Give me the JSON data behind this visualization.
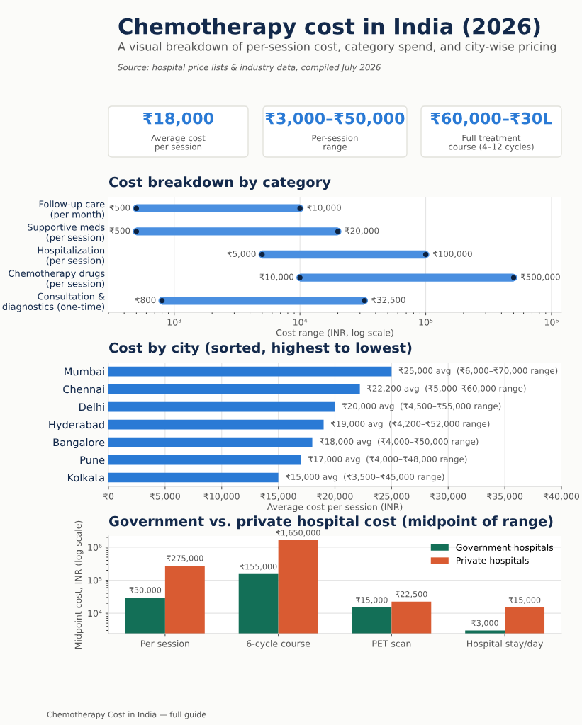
{
  "chart_data": [
    {
      "type": "other",
      "title": "Chemotherapy cost in India (2026)",
      "subtitle": "A visual breakdown of per-session cost, category spend, and city-wise pricing",
      "annotations": [
        "Source: hospital price lists & industry data, compiled July 2026",
        "₹18,000",
        "Average cost\nper session",
        "₹3,000–₹50,000",
        "Per-session\nrange",
        "₹60,000–₹30L",
        "Full treatment\ncourse (4–12 cycles)",
        "Chemotherapy Cost in India — full guide"
      ]
    },
    {
      "type": "bar",
      "orientation": "horizontal",
      "title": "Cost breakdown by category",
      "xlabel": "Cost range (INR, log scale)",
      "categories": [
        "Follow-up care\n(per month)",
        "Supportive meds\n(per session)",
        "Hospitalization\n(per session)",
        "Chemotherapy drugs\n(per session)",
        "Consultation &\ndiagnostics (one-time)"
      ],
      "series": [
        {
          "type": "bar",
          "color": "#4a8fe0",
          "base": [
            500,
            500,
            5000,
            10000,
            800
          ],
          "values": [
            9500,
            19500,
            95000,
            490000,
            31700
          ]
        },
        {
          "type": "scatter",
          "color": "#0d2240",
          "values": [
            500,
            500,
            5000,
            10000,
            800
          ]
        },
        {
          "type": "scatter",
          "color": "#0d2240",
          "values": [
            10000,
            20000,
            100000,
            500000,
            32500
          ]
        }
      ],
      "marker": "circle",
      "log": "x",
      "grid": "x",
      "xlim": [
        300,
        1200000
      ],
      "xticks": [
        {
          "value": 1000,
          "label": "10³"
        },
        {
          "value": 10000,
          "label": "10⁴"
        },
        {
          "value": 100000,
          "label": "10⁵"
        },
        {
          "value": 1000000,
          "label": "10⁶"
        }
      ],
      "annotations": [
        {
          "text": "₹500",
          "x": 500,
          "y": "Follow-up care\n(per month)"
        },
        {
          "text": "₹10,000",
          "x": 10000,
          "y": "Follow-up care\n(per month)"
        },
        {
          "text": "₹500",
          "x": 500,
          "y": "Supportive meds\n(per session)"
        },
        {
          "text": "₹20,000",
          "x": 20000,
          "y": "Supportive meds\n(per session)"
        },
        {
          "text": "₹5,000",
          "x": 5000,
          "y": "Hospitalization\n(per session)"
        },
        {
          "text": "₹100,000",
          "x": 100000,
          "y": "Hospitalization\n(per session)"
        },
        {
          "text": "₹10,000",
          "x": 10000,
          "y": "Chemotherapy drugs\n(per session)"
        },
        {
          "text": "₹500,000",
          "x": 500000,
          "y": "Chemotherapy drugs\n(per session)"
        },
        {
          "text": "₹800",
          "x": 800,
          "y": "Consultation &\ndiagnostics (one-time)"
        },
        {
          "text": "₹32,500",
          "x": 32500,
          "y": "Consultation &\ndiagnostics (one-time)"
        }
      ]
    },
    {
      "type": "bar",
      "orientation": "horizontal",
      "title": "Cost by city (sorted, highest to lowest)",
      "xlabel": "Average cost per session (INR)",
      "categories": [
        "Mumbai",
        "Chennai",
        "Delhi",
        "Hyderabad",
        "Bangalore",
        "Pune",
        "Kolkata"
      ],
      "values": [
        25000,
        22200,
        20000,
        19000,
        18000,
        17000,
        15000
      ],
      "value_labels": [
        "₹25,000 avg  (₹6,000–₹70,000 range)",
        "₹22,200 avg  (₹5,000–₹60,000 range)",
        "₹20,000 avg  (₹4,500–₹55,000 range)",
        "₹19,000 avg  (₹4,200–₹52,000 range)",
        "₹18,000 avg  (₹4,000–₹50,000 range)",
        "₹17,000 avg  (₹4,000–₹48,000 range)",
        "₹15,000 avg  (₹3,500–₹45,000 range)"
      ],
      "color": "#2a7ad5",
      "grid": "x",
      "xlim": [
        0,
        40000
      ],
      "xticks": [
        {
          "value": 0,
          "label": "₹0"
        },
        {
          "value": 5000,
          "label": "₹5,000"
        },
        {
          "value": 10000,
          "label": "₹10,000"
        },
        {
          "value": 15000,
          "label": "₹15,000"
        },
        {
          "value": 20000,
          "label": "₹20,000"
        },
        {
          "value": 25000,
          "label": "₹25,000"
        },
        {
          "value": 30000,
          "label": "₹30,000"
        },
        {
          "value": 35000,
          "label": "₹35,000"
        },
        {
          "value": 40000,
          "label": "₹40,000"
        }
      ]
    },
    {
      "type": "bar",
      "title": "Government vs. private hospital cost (midpoint of range)",
      "ylabel": "Midpoint cost, INR (log scale)",
      "categories": [
        "Per session",
        "6-cycle course",
        "PET scan",
        "Hospital stay/day"
      ],
      "series": [
        {
          "name": "Government hospitals",
          "color": "#136f57",
          "values": [
            30000,
            155000,
            15000,
            3000
          ],
          "value_labels": [
            "₹30,000",
            "₹155,000",
            "₹15,000",
            "₹3,000"
          ]
        },
        {
          "name": "Private hospitals",
          "color": "#d95b32",
          "values": [
            275000,
            1650000,
            22500,
            15000
          ],
          "value_labels": [
            "₹275,000",
            "₹1,650,000",
            "₹22,500",
            "₹15,000"
          ]
        }
      ],
      "log": "y",
      "grid": "y",
      "legend": "top right",
      "ylim": [
        2400,
        2200000
      ],
      "yticks": [
        {
          "value": 10000,
          "label": "10⁴"
        },
        {
          "value": 100000,
          "label": "10⁵"
        },
        {
          "value": 1000000,
          "label": "10⁶"
        }
      ]
    }
  ]
}
